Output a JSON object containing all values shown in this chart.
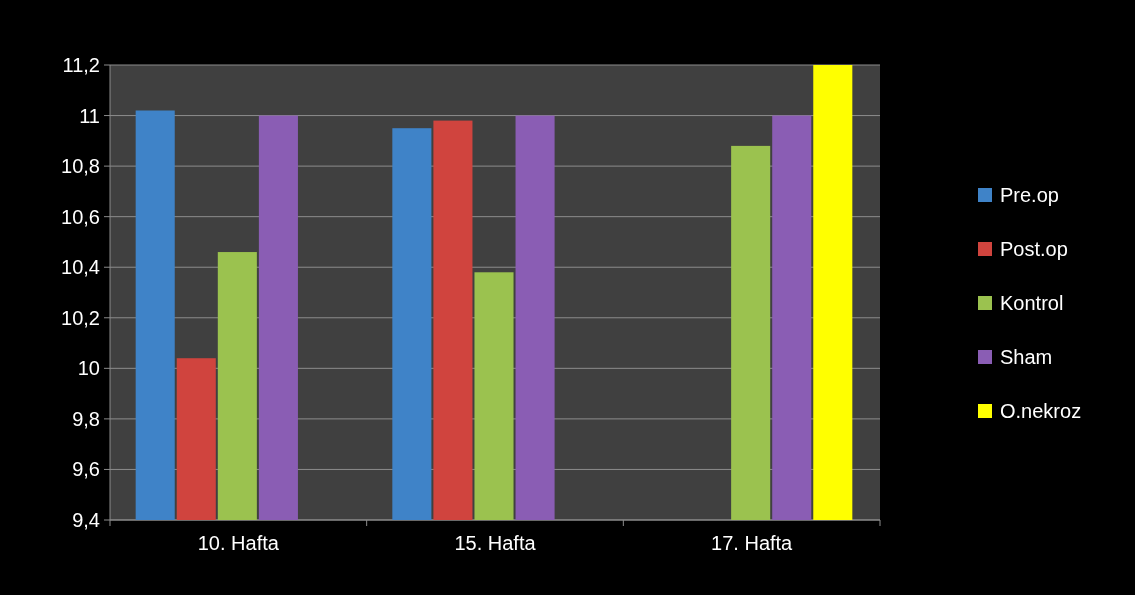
{
  "chart_data": {
    "type": "bar",
    "categories": [
      "10. Hafta",
      "15. Hafta",
      "17. Hafta"
    ],
    "series": [
      {
        "name": "Pre.op",
        "color": "#3f83c8",
        "values": [
          11.02,
          10.95,
          null
        ]
      },
      {
        "name": "Post.op",
        "color": "#d0443e",
        "values": [
          10.04,
          10.98,
          null
        ]
      },
      {
        "name": "Kontrol",
        "color": "#9bc24f",
        "values": [
          10.46,
          10.38,
          10.88
        ]
      },
      {
        "name": "Sham",
        "color": "#8a5db4",
        "values": [
          11.0,
          11.0,
          11.0
        ]
      },
      {
        "name": "O.nekroz",
        "color": "#ffff00",
        "values": [
          null,
          null,
          11.2
        ]
      }
    ],
    "ylim": [
      9.4,
      11.2
    ],
    "yticks": [
      {
        "value": 9.4,
        "label": "9,4"
      },
      {
        "value": 9.6,
        "label": "9,6"
      },
      {
        "value": 9.8,
        "label": "9,8"
      },
      10,
      {
        "value": 10.2,
        "label": "10,2"
      },
      {
        "value": 10.4,
        "label": "10,4"
      },
      {
        "value": 10.6,
        "label": "10,6"
      },
      {
        "value": 10.8,
        "label": "10,8"
      },
      11,
      {
        "value": 11.2,
        "label": "11,2"
      }
    ],
    "grid": "y",
    "legend": "right"
  }
}
